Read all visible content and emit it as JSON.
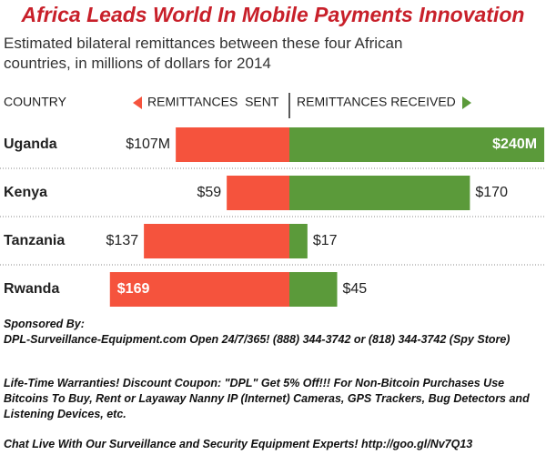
{
  "chart_data": {
    "type": "diverging-bar",
    "title": "Africa Leads World In Mobile Payments Innovation",
    "subtitle": "Estimated bilateral remittances between these four African countries, in millions of dollars for 2014",
    "category_header": "COUNTRY",
    "categories": [
      "Uganda",
      "Kenya",
      "Tanzania",
      "Rwanda"
    ],
    "series": [
      {
        "name": "REMITTANCES  SENT",
        "color": "#f5533d",
        "values": [
          107,
          59,
          137,
          169
        ],
        "value_labels": [
          "$107M",
          "$59",
          "$137",
          "$169"
        ]
      },
      {
        "name": "REMITTANCES RECEIVED",
        "color": "#5b9a3a",
        "values": [
          240,
          170,
          17,
          45
        ],
        "value_labels": [
          "$240M",
          "$170",
          "$17",
          "$45"
        ]
      }
    ]
  },
  "sponsor": {
    "heading": "Sponsored By:",
    "contact": "DPL-Surveillance-Equipment.com Open 24/7/365! (888) 344-3742 or (818) 344-3742 (Spy Store)",
    "offer": "Life-Time Warranties!  Discount Coupon: \"DPL\" Get 5% Off!!! For Non-Bitcoin Purchases Use Bitcoins To Buy, Rent or Layaway Nanny IP (Internet) Cameras, GPS Trackers, Bug Detectors and Listening Devices, etc.",
    "chat": "Chat Live With Our Surveillance and Security Equipment Experts! http://goo.gl/Nv7Q13"
  }
}
